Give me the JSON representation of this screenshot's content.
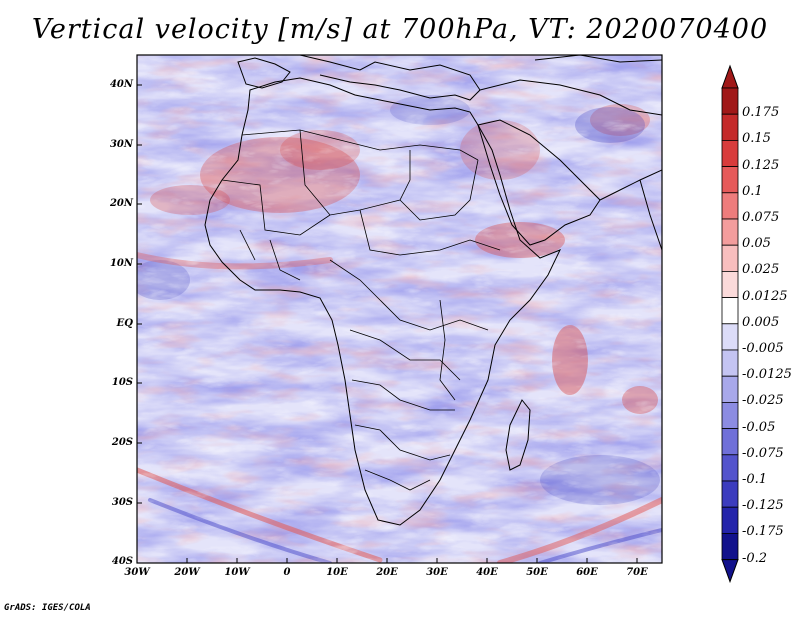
{
  "title": "Vertical velocity [m/s] at 700hPa, VT: 2020070400",
  "credit": "GrADS: IGES/COLA",
  "lat_labels": [
    "40N",
    "30N",
    "20N",
    "10N",
    "EQ",
    "10S",
    "20S",
    "30S",
    "40S"
  ],
  "lon_labels": [
    "30W",
    "20W",
    "10W",
    "0",
    "10E",
    "20E",
    "30E",
    "40E",
    "50E",
    "60E",
    "70E"
  ],
  "colorbar": {
    "labels": [
      "0.175",
      "0.15",
      "0.125",
      "0.1",
      "0.075",
      "0.05",
      "0.025",
      "0.0125",
      "0.005",
      "-0.005",
      "-0.0125",
      "-0.025",
      "-0.05",
      "-0.075",
      "-0.1",
      "-0.125",
      "-0.175",
      "-0.2"
    ],
    "colors": [
      "#a01818",
      "#c42a2a",
      "#d83c3c",
      "#e65a5a",
      "#ee7c7c",
      "#f39d9d",
      "#f8bebe",
      "#fbdada",
      "#ffffff",
      "#dcdcf8",
      "#c4c4f2",
      "#a8a8ea",
      "#8c8ce2",
      "#7070d8",
      "#5454cc",
      "#3c3cbe",
      "#2424aa",
      "#12128c"
    ]
  },
  "colors": {
    "land_line": "#000000",
    "pos": "#e06060",
    "neg": "#6a6ad8",
    "bg": "#e8e8fb"
  }
}
